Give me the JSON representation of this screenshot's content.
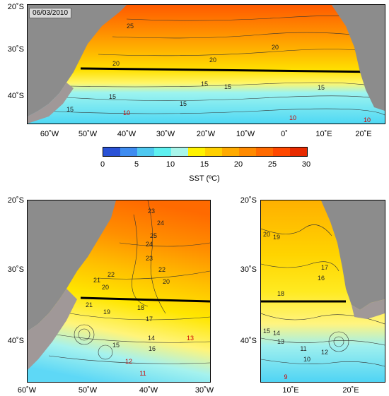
{
  "date": "06/03/2010",
  "colorbar": {
    "title": "SST (ºC)",
    "ticks": [
      "0",
      "5",
      "10",
      "15",
      "20",
      "25",
      "30"
    ],
    "colors": [
      "#2a52d6",
      "#3f8cf0",
      "#4fc8f0",
      "#5ef0f0",
      "#a8f5ea",
      "#fff200",
      "#ffd000",
      "#ffaa00",
      "#ff8a00",
      "#ff6a00",
      "#ff4800",
      "#e82a00"
    ]
  },
  "top_panel": {
    "lat_labels": [
      "20˚S",
      "30˚S",
      "40˚S"
    ],
    "lon_labels": [
      "60˚W",
      "50˚W",
      "40˚W",
      "30˚W",
      "20˚W",
      "10˚W",
      "0˚",
      "10˚E",
      "20˚E"
    ],
    "contour_labels": [
      "25",
      "20",
      "20",
      "20",
      "15",
      "15",
      "15",
      "15",
      "15",
      "15",
      "10",
      "10",
      "10"
    ]
  },
  "bottom_left_panel": {
    "lat_labels": [
      "20˚S",
      "30˚S",
      "40˚S"
    ],
    "lon_labels": [
      "60˚W",
      "50˚W",
      "40˚W",
      "30˚W"
    ],
    "contour_labels": [
      "23",
      "24",
      "25",
      "22",
      "23",
      "24",
      "21",
      "22",
      "20",
      "21",
      "20",
      "19",
      "18",
      "17",
      "16",
      "15",
      "14",
      "13",
      "12",
      "11"
    ]
  },
  "bottom_right_panel": {
    "lat_labels": [
      "20˚S",
      "30˚S",
      "40˚S"
    ],
    "lon_labels": [
      "10˚E",
      "20˚E"
    ],
    "contour_labels": [
      "20",
      "19",
      "18",
      "17",
      "16",
      "15",
      "14",
      "13",
      "12",
      "11",
      "10",
      "9"
    ]
  },
  "colors": {
    "land": "#8c8c8c",
    "shelf": "#a09898"
  }
}
